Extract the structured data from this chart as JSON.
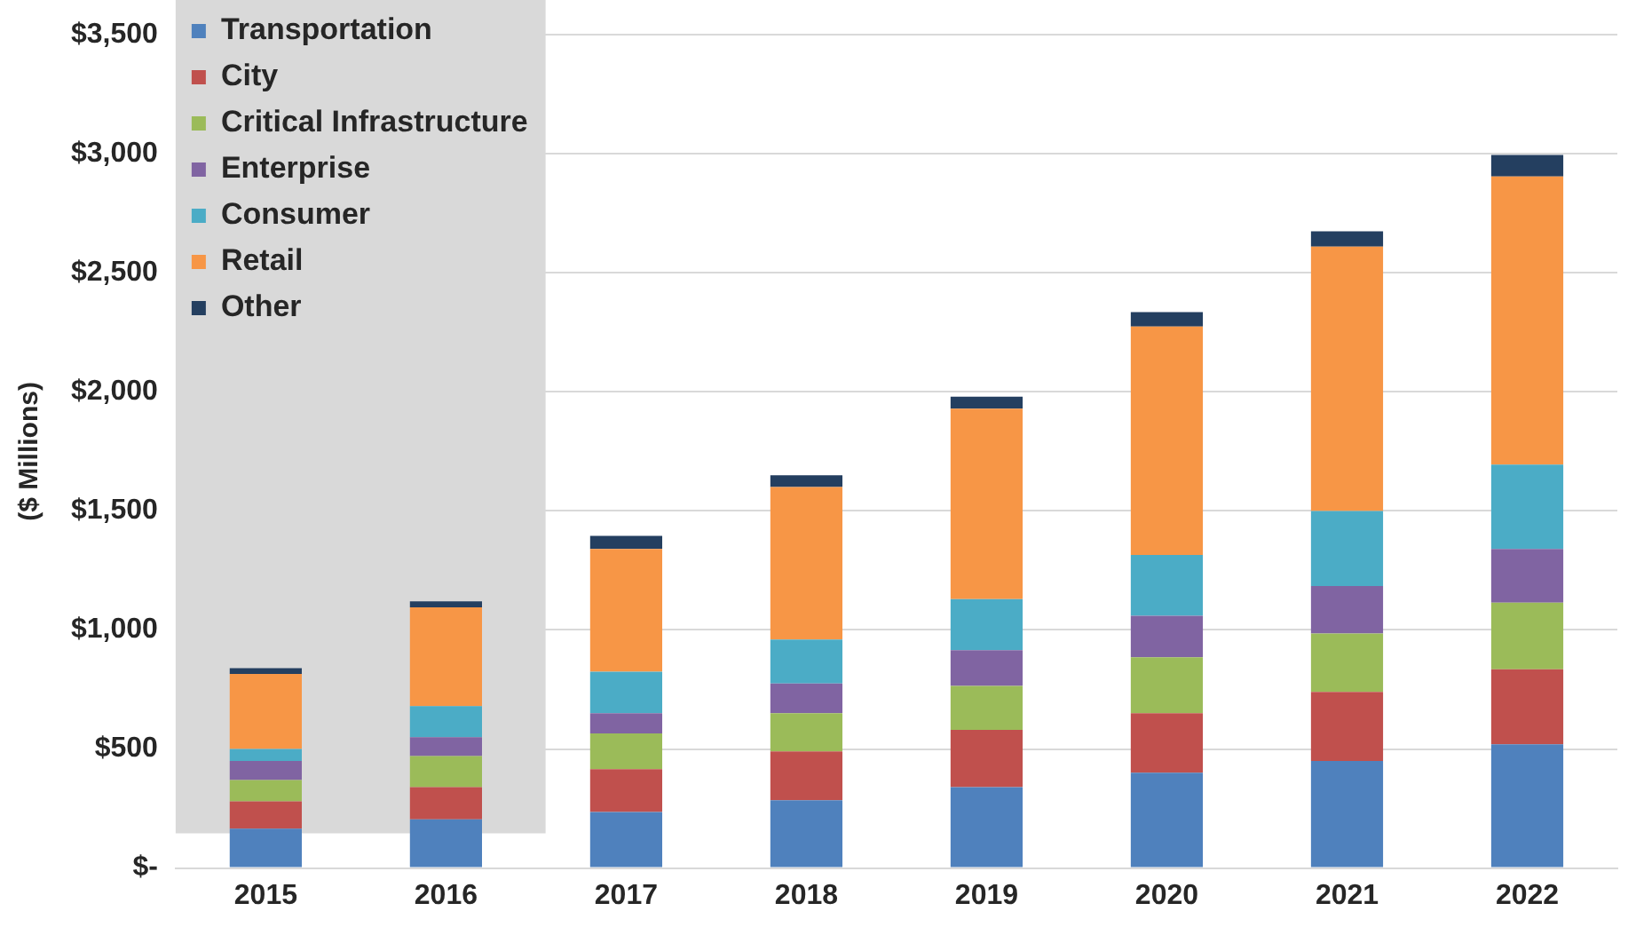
{
  "chart_data": {
    "type": "bar",
    "stacked": true,
    "ylabel": "($ Millions)",
    "categories": [
      "2015",
      "2016",
      "2017",
      "2018",
      "2019",
      "2020",
      "2021",
      "2022"
    ],
    "series": [
      {
        "name": "Transportation",
        "color": "#4f81bd",
        "values": [
          165,
          205,
          235,
          285,
          340,
          400,
          450,
          520
        ]
      },
      {
        "name": "City",
        "color": "#c0504d",
        "values": [
          115,
          135,
          180,
          205,
          240,
          250,
          290,
          315
        ]
      },
      {
        "name": "Critical Infrastructure",
        "color": "#9bbb59",
        "values": [
          90,
          130,
          150,
          160,
          185,
          235,
          245,
          280
        ]
      },
      {
        "name": "Enterprise",
        "color": "#8064a2",
        "values": [
          80,
          80,
          85,
          125,
          150,
          175,
          200,
          225
        ]
      },
      {
        "name": "Consumer",
        "color": "#4bacc6",
        "values": [
          50,
          130,
          175,
          185,
          215,
          255,
          315,
          355
        ]
      },
      {
        "name": "Retail",
        "color": "#f79646",
        "values": [
          315,
          415,
          515,
          640,
          800,
          960,
          1110,
          1210
        ]
      },
      {
        "name": "Other",
        "color": "#243f60",
        "values": [
          25,
          25,
          55,
          50,
          50,
          60,
          65,
          90
        ]
      }
    ],
    "ylim": [
      0,
      3500
    ],
    "yticks": [
      {
        "value": 0,
        "label": "$-"
      },
      {
        "value": 500,
        "label": "$500"
      },
      {
        "value": 1000,
        "label": "$1,000"
      },
      {
        "value": 1500,
        "label": "$1,500"
      },
      {
        "value": 2000,
        "label": "$2,000"
      },
      {
        "value": 2500,
        "label": "$2,500"
      },
      {
        "value": 3000,
        "label": "$3,000"
      },
      {
        "value": 3500,
        "label": "$3,500"
      }
    ],
    "grid": "y",
    "legend": "top left"
  }
}
